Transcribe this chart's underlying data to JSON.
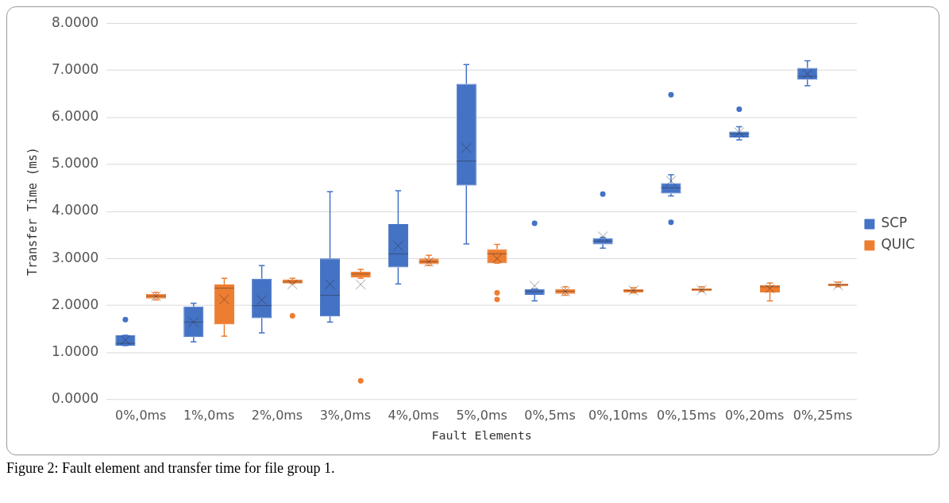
{
  "chart_data": {
    "type": "box",
    "xlabel": "Fault Elements",
    "ylabel": "Transfer Time (ms)",
    "categories": [
      "0%,0ms",
      "1%,0ms",
      "2%,0ms",
      "3%,0ms",
      "4%,0ms",
      "5%,0ms",
      "0%,5ms",
      "0%,10ms",
      "0%,15ms",
      "0%,20ms",
      "0%,25ms"
    ],
    "series": [
      {
        "name": "SCP",
        "color": "#4472c4",
        "boxes": [
          {
            "low": 1.15,
            "q1": 1.15,
            "median": 1.2,
            "q3": 1.37,
            "high": 1.37,
            "mean": 1.27,
            "outliers": [
              1.7
            ]
          },
          {
            "low": 1.23,
            "q1": 1.33,
            "median": 1.65,
            "q3": 1.98,
            "high": 2.05,
            "mean": 1.65
          },
          {
            "low": 1.42,
            "q1": 1.73,
            "median": 2.0,
            "q3": 2.57,
            "high": 2.85,
            "mean": 2.12
          },
          {
            "low": 1.65,
            "q1": 1.77,
            "median": 2.22,
            "q3": 3.0,
            "high": 4.42,
            "mean": 2.45
          },
          {
            "low": 2.46,
            "q1": 2.81,
            "median": 3.1,
            "q3": 3.73,
            "high": 4.44,
            "mean": 3.27
          },
          {
            "low": 3.31,
            "q1": 4.55,
            "median": 5.07,
            "q3": 6.71,
            "high": 7.12,
            "mean": 5.35
          },
          {
            "low": 2.1,
            "q1": 2.23,
            "median": 2.3,
            "q3": 2.35,
            "high": 2.35,
            "mean": 2.42,
            "outliers": [
              3.75
            ]
          },
          {
            "low": 3.22,
            "q1": 3.3,
            "median": 3.37,
            "q3": 3.43,
            "high": 3.45,
            "mean": 3.47,
            "outliers": [
              4.37
            ]
          },
          {
            "low": 4.33,
            "q1": 4.38,
            "median": 4.5,
            "q3": 4.6,
            "high": 4.78,
            "mean": 4.65,
            "outliers": [
              6.48,
              3.77
            ]
          },
          {
            "low": 5.52,
            "q1": 5.57,
            "median": 5.65,
            "q3": 5.7,
            "high": 5.8,
            "mean": 5.68,
            "outliers": [
              6.17
            ]
          },
          {
            "low": 6.67,
            "q1": 6.8,
            "median": 6.87,
            "q3": 7.05,
            "high": 7.2,
            "mean": 6.92
          }
        ]
      },
      {
        "name": "QUIC",
        "color": "#ed7d31",
        "boxes": [
          {
            "low": 2.12,
            "q1": 2.15,
            "median": 2.2,
            "q3": 2.25,
            "high": 2.28,
            "mean": 2.2
          },
          {
            "low": 1.35,
            "q1": 1.6,
            "median": 2.37,
            "q3": 2.45,
            "high": 2.58,
            "mean": 2.13
          },
          {
            "low": 2.47,
            "q1": 2.47,
            "median": 2.5,
            "q3": 2.55,
            "high": 2.58,
            "mean": 2.45,
            "outliers": [
              1.78
            ]
          },
          {
            "low": 2.58,
            "q1": 2.6,
            "median": 2.67,
            "q3": 2.72,
            "high": 2.77,
            "mean": 2.45,
            "outliers": [
              0.4
            ]
          },
          {
            "low": 2.85,
            "q1": 2.88,
            "median": 2.93,
            "q3": 3.0,
            "high": 3.07,
            "mean": 2.93
          },
          {
            "low": 2.9,
            "q1": 2.9,
            "median": 3.1,
            "q3": 3.2,
            "high": 3.3,
            "mean": 3.0,
            "outliers": [
              2.27,
              2.13
            ]
          },
          {
            "low": 2.22,
            "q1": 2.25,
            "median": 2.3,
            "q3": 2.35,
            "high": 2.4,
            "mean": 2.3
          },
          {
            "low": 2.27,
            "q1": 2.28,
            "median": 2.32,
            "q3": 2.35,
            "high": 2.38,
            "mean": 2.32
          },
          {
            "low": 2.3,
            "q1": 2.31,
            "median": 2.34,
            "q3": 2.37,
            "high": 2.4,
            "mean": 2.33
          },
          {
            "low": 2.1,
            "q1": 2.28,
            "median": 2.4,
            "q3": 2.43,
            "high": 2.48,
            "mean": 2.36
          },
          {
            "low": 2.4,
            "q1": 2.41,
            "median": 2.44,
            "q3": 2.47,
            "high": 2.5,
            "mean": 2.43
          }
        ]
      }
    ],
    "ylim": [
      0,
      8
    ],
    "yticks": [
      {
        "value": 0,
        "label": "0.0000"
      },
      {
        "value": 1,
        "label": "1.0000"
      },
      {
        "value": 2,
        "label": "2.0000"
      },
      {
        "value": 3,
        "label": "3.0000"
      },
      {
        "value": 4,
        "label": "4.0000"
      },
      {
        "value": 5,
        "label": "5.0000"
      },
      {
        "value": 6,
        "label": "6.0000"
      },
      {
        "value": 7,
        "label": "7.0000"
      },
      {
        "value": 8,
        "label": "8.0000"
      }
    ],
    "grid": "y",
    "legend": "right",
    "marker": "cross",
    "annotations": [
      "Figure 2: Fault element and transfer time for file group 1."
    ]
  }
}
